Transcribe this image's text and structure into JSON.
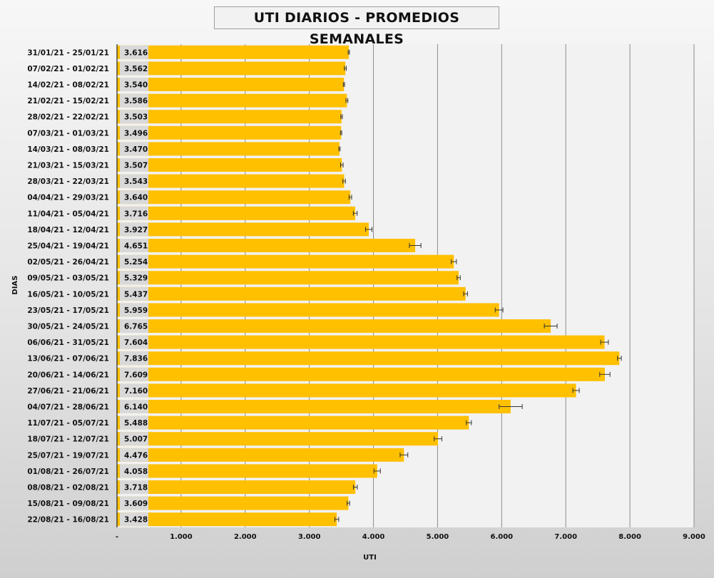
{
  "chart_data": {
    "type": "bar",
    "orientation": "horizontal",
    "title": "UTI DIARIOS - PROMEDIOS SEMANALES",
    "xlabel": "UTI",
    "ylabel": "DIAS",
    "xlim": [
      0,
      9000
    ],
    "xticks": [
      "-",
      "1.000",
      "2.000",
      "3.000",
      "4.000",
      "5.000",
      "6.000",
      "7.000",
      "8.000",
      "9.000"
    ],
    "grid": true,
    "bar_color": "#ffc000",
    "error_bars": true,
    "categories": [
      "31/01/21 - 25/01/21",
      "07/02/21 - 01/02/21",
      "14/02/21 - 08/02/21",
      "21/02/21 - 15/02/21",
      "28/02/21 - 22/02/21",
      "07/03/21 - 01/03/21",
      "14/03/21 - 08/03/21",
      "21/03/21 - 15/03/21",
      "28/03/21 - 22/03/21",
      "04/04/21 - 29/03/21",
      "11/04/21 - 05/04/21",
      "18/04/21 - 12/04/21",
      "25/04/21 - 19/04/21",
      "02/05/21 - 26/04/21",
      "09/05/21 - 03/05/21",
      "16/05/21 - 10/05/21",
      "23/05/21 - 17/05/21",
      "30/05/21 - 24/05/21",
      "06/06/21 - 31/05/21",
      "13/06/21 - 07/06/21",
      "20/06/21 - 14/06/21",
      "27/06/21 - 21/06/21",
      "04/07/21 - 28/06/21",
      "11/07/21 - 05/07/21",
      "18/07/21 - 12/07/21",
      "25/07/21 - 19/07/21",
      "01/08/21 - 26/07/21",
      "08/08/21 - 02/08/21",
      "15/08/21 - 09/08/21",
      "22/08/21 - 16/08/21"
    ],
    "values": [
      3616,
      3562,
      3540,
      3586,
      3503,
      3496,
      3470,
      3507,
      3543,
      3640,
      3716,
      3927,
      4651,
      5254,
      5329,
      5437,
      5959,
      6765,
      7604,
      7836,
      7609,
      7160,
      6140,
      5488,
      5007,
      4476,
      4058,
      3718,
      3609,
      3428
    ],
    "value_labels": [
      "3.616",
      "3.562",
      "3.540",
      "3.586",
      "3.503",
      "3.496",
      "3.470",
      "3.507",
      "3.543",
      "3.640",
      "3.716",
      "3.927",
      "4.651",
      "5.254",
      "5.329",
      "5.437",
      "5.959",
      "6.765",
      "7.604",
      "7.836",
      "7.609",
      "7.160",
      "6.140",
      "5.488",
      "5.007",
      "4.476",
      "4.058",
      "3.718",
      "3.609",
      "3.428"
    ],
    "errors": [
      10,
      15,
      10,
      15,
      12,
      10,
      10,
      20,
      20,
      20,
      30,
      50,
      90,
      40,
      25,
      30,
      60,
      100,
      60,
      30,
      80,
      50,
      180,
      40,
      60,
      60,
      50,
      30,
      20,
      30
    ]
  }
}
